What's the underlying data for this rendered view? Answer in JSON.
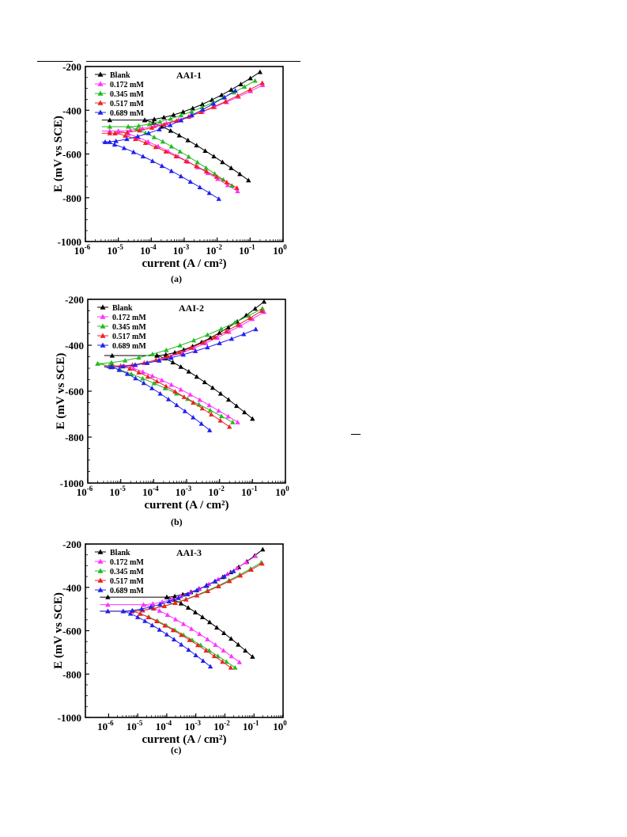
{
  "common": {
    "xlabel": "current (A / cm²)",
    "ylabel": "E (mV vs SCE)",
    "ylim": [
      -1000,
      -200
    ],
    "yticks": [
      "-200",
      "-400",
      "-600",
      "-800",
      "-1000"
    ],
    "xtick_exponents": [
      "-6",
      "-5",
      "-4",
      "-3",
      "-2",
      "-1",
      "0"
    ],
    "legend": [
      {
        "label": "Blank",
        "color": "#000000"
      },
      {
        "label": "0.172 mM",
        "color": "#ff33ff"
      },
      {
        "label": "0.345 mM",
        "color": "#22bb22"
      },
      {
        "label": "0.517 mM",
        "color": "#ee2222"
      },
      {
        "label": "0.689 mM",
        "color": "#2222ee"
      }
    ]
  },
  "chart_data": [
    {
      "type": "line",
      "title": "AAI-1",
      "caption": "(a)",
      "xscale": "log",
      "xlim_log10": [
        -6,
        0
      ],
      "ylim": [
        -1000,
        -200
      ],
      "series": [
        {
          "name": "Blank",
          "ecorr": -445,
          "icorr_log": -4.2,
          "anodic_end": [
            -0.7,
            -225
          ],
          "cathodic_end": [
            -1.05,
            -720
          ]
        },
        {
          "name": "0.172 mM",
          "ecorr": -495,
          "icorr_log": -5.0,
          "anodic_end": [
            -0.62,
            -285
          ],
          "cathodic_end": [
            -1.38,
            -770
          ]
        },
        {
          "name": "0.345 mM",
          "ecorr": -475,
          "icorr_log": -4.7,
          "anodic_end": [
            -0.85,
            -265
          ],
          "cathodic_end": [
            -1.55,
            -745
          ]
        },
        {
          "name": "0.517 mM",
          "ecorr": -505,
          "icorr_log": -5.1,
          "anodic_end": [
            -0.63,
            -275
          ],
          "cathodic_end": [
            -1.4,
            -755
          ]
        },
        {
          "name": "0.689 mM",
          "ecorr": -545,
          "icorr_log": -5.4,
          "anodic_end": [
            -1.45,
            -310
          ],
          "cathodic_end": [
            -1.95,
            -805
          ]
        }
      ]
    },
    {
      "type": "line",
      "title": "AAI-2",
      "caption": "(b)",
      "xscale": "log",
      "xlim_log10": [
        -6,
        0
      ],
      "ylim": [
        -1000,
        -200
      ],
      "series": [
        {
          "name": "Blank",
          "ecorr": -445,
          "icorr_log": -3.9,
          "anodic_end": [
            -0.65,
            -210
          ],
          "cathodic_end": [
            -1.0,
            -720
          ]
        },
        {
          "name": "0.172 mM",
          "ecorr": -490,
          "icorr_log": -4.9,
          "anodic_end": [
            -0.65,
            -255
          ],
          "cathodic_end": [
            -1.45,
            -735
          ]
        },
        {
          "name": "0.345 mM",
          "ecorr": -480,
          "icorr_log": -5.7,
          "anodic_end": [
            -0.7,
            -240
          ],
          "cathodic_end": [
            -1.6,
            -735
          ]
        },
        {
          "name": "0.517 mM",
          "ecorr": -490,
          "icorr_log": -5.0,
          "anodic_end": [
            -0.72,
            -250
          ],
          "cathodic_end": [
            -1.7,
            -755
          ]
        },
        {
          "name": "0.689 mM",
          "ecorr": -495,
          "icorr_log": -5.3,
          "anodic_end": [
            -0.9,
            -330
          ],
          "cathodic_end": [
            -2.3,
            -770
          ]
        }
      ]
    },
    {
      "type": "line",
      "title": "AAI-3",
      "caption": "(c)",
      "xscale": "log",
      "xlim_log10": [
        -6.8,
        0
      ],
      "ylim": [
        -1000,
        -200
      ],
      "series": [
        {
          "name": "Blank",
          "ecorr": -445,
          "icorr_log": -4.0,
          "anodic_end": [
            -0.7,
            -225
          ],
          "cathodic_end": [
            -1.05,
            -720
          ]
        },
        {
          "name": "0.172 mM",
          "ecorr": -480,
          "icorr_log": -4.8,
          "anodic_end": [
            -0.95,
            -255
          ],
          "cathodic_end": [
            -1.5,
            -745
          ]
        },
        {
          "name": "0.345 mM",
          "ecorr": -510,
          "icorr_log": -5.2,
          "anodic_end": [
            -0.75,
            -285
          ],
          "cathodic_end": [
            -1.65,
            -770
          ]
        },
        {
          "name": "0.517 mM",
          "ecorr": -510,
          "icorr_log": -5.2,
          "anodic_end": [
            -0.72,
            -290
          ],
          "cathodic_end": [
            -1.8,
            -770
          ]
        },
        {
          "name": "0.689 mM",
          "ecorr": -510,
          "icorr_log": -5.5,
          "anodic_end": [
            -1.7,
            -325
          ],
          "cathodic_end": [
            -2.5,
            -765
          ]
        }
      ]
    }
  ]
}
